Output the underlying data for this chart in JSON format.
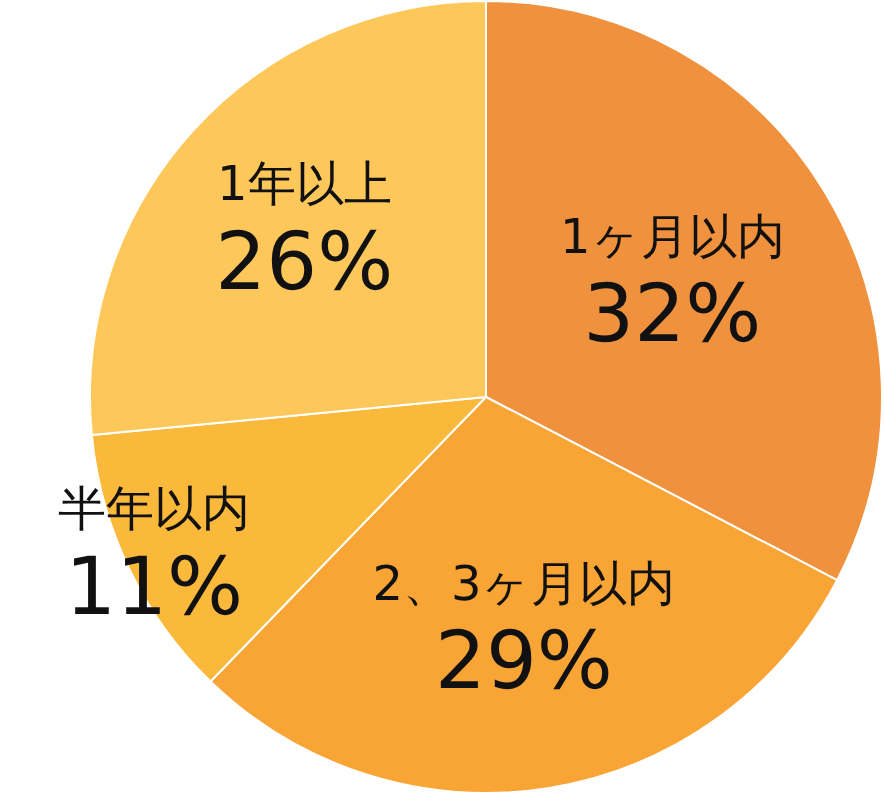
{
  "chart_data": {
    "type": "pie",
    "categories": [
      "1ヶ月以内",
      "2、3ヶ月以内",
      "半年以内",
      "1年以上"
    ],
    "values": [
      32,
      29,
      11,
      26
    ],
    "value_labels": [
      "32%",
      "29%",
      "11%",
      "26%"
    ],
    "colors": [
      "#f0913e",
      "#f9a535",
      "#fbb93b",
      "#fdc75a"
    ],
    "legend": false
  }
}
